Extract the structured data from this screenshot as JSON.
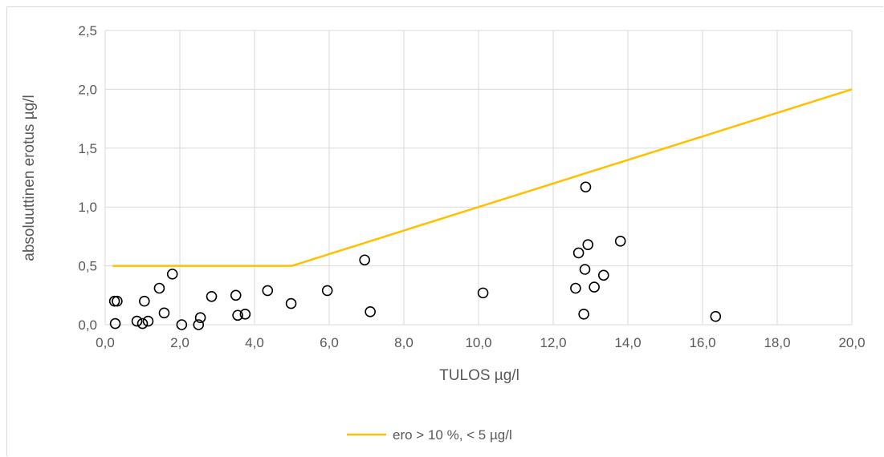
{
  "chart_data": {
    "type": "scatter",
    "xlabel": "TULOS µg/l",
    "ylabel": "absoluuttinen erotus µg/l",
    "xlim": [
      0,
      20
    ],
    "ylim": [
      0,
      2.5
    ],
    "x_ticks": [
      "0,0",
      "2,0",
      "4,0",
      "6,0",
      "8,0",
      "10,0",
      "12,0",
      "14,0",
      "16,0",
      "18,0",
      "20,0"
    ],
    "y_ticks": [
      "0,0",
      "0,5",
      "1,0",
      "1,5",
      "2,0",
      "2,5"
    ],
    "grid": true,
    "legend_position": "bottom",
    "series": [
      {
        "kind": "points",
        "marker": "open-circle",
        "color": "#000000",
        "x": [
          0.25,
          0.32,
          0.27,
          0.85,
          1.0,
          1.05,
          1.15,
          1.45,
          1.58,
          1.8,
          2.05,
          2.5,
          2.55,
          2.85,
          3.5,
          3.55,
          3.75,
          4.35,
          4.98,
          5.95,
          6.95,
          7.1,
          10.12,
          12.6,
          12.68,
          12.82,
          12.85,
          12.87,
          12.93,
          13.1,
          13.35,
          13.8,
          16.35
        ],
        "y": [
          0.2,
          0.2,
          0.01,
          0.03,
          0.01,
          0.2,
          0.03,
          0.31,
          0.1,
          0.43,
          0.0,
          0.0,
          0.06,
          0.24,
          0.25,
          0.08,
          0.09,
          0.29,
          0.18,
          0.29,
          0.55,
          0.11,
          0.27,
          0.31,
          0.61,
          0.09,
          0.47,
          1.17,
          0.68,
          0.32,
          0.42,
          0.71,
          0.07
        ]
      },
      {
        "kind": "line",
        "name": "ero > 10 %, < 5 µg/l",
        "color": "#ffc000",
        "x": [
          0.2,
          5.0,
          20.0
        ],
        "y": [
          0.5,
          0.5,
          2.0
        ]
      }
    ]
  }
}
